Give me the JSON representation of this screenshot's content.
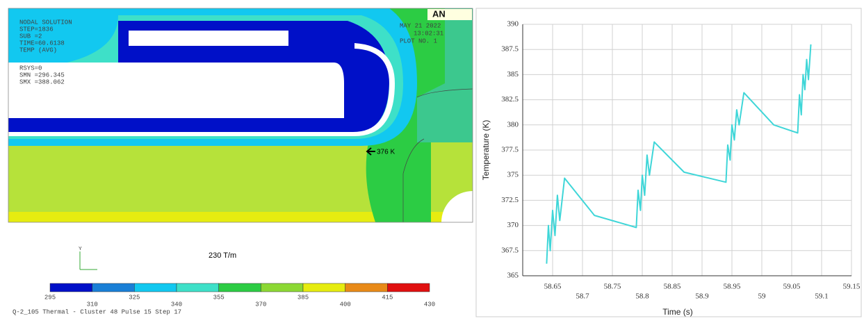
{
  "contour_plot": {
    "info_left": [
      "NODAL SOLUTION",
      "STEP=1836",
      "SUB =2",
      "TIME=60.6138",
      "TEMP (AVG)",
      "RSYS=0",
      "SMN =296.345",
      "SMX =388.062"
    ],
    "logo": "AN",
    "info_right": [
      "MAY 21 2022",
      "13:02:31",
      "PLOT NO. 1"
    ],
    "arrow_label": "376 K",
    "gradient_label": "230 T/m",
    "legend": {
      "levels": [
        295,
        310,
        325,
        340,
        355,
        370,
        385,
        400,
        415,
        430
      ],
      "colors": [
        "#0010c8",
        "#1a7fd6",
        "#12c8f0",
        "#3ee0c8",
        "#2ccc44",
        "#8cd834",
        "#e6ec10",
        "#e88a18",
        "#e01010"
      ]
    },
    "footer": "Q-2_105 Thermal - Cluster 48  Pulse 15  Step 17"
  },
  "chart_data": {
    "type": "line",
    "x": [
      58.64,
      58.643,
      58.646,
      58.65,
      58.654,
      58.658,
      58.662,
      58.67,
      58.72,
      58.79,
      58.793,
      58.797,
      58.8,
      58.804,
      58.808,
      58.812,
      58.82,
      58.87,
      58.94,
      58.943,
      58.947,
      58.95,
      58.954,
      58.958,
      58.962,
      58.97,
      59.02,
      59.06,
      59.063,
      59.066,
      59.069,
      59.072,
      59.075,
      59.078,
      59.082
    ],
    "values": [
      366.2,
      370,
      367.5,
      371.5,
      369,
      373,
      370.5,
      374.7,
      371,
      369.8,
      373.5,
      371.5,
      375,
      373,
      377,
      375,
      378.3,
      375.3,
      374.3,
      378,
      376.5,
      380,
      378.5,
      381.5,
      380,
      383.2,
      380,
      379.2,
      383,
      381,
      385,
      383.5,
      386.5,
      384.5,
      388
    ],
    "color": "#3fd6d8",
    "xlabel": "Time (s)",
    "ylabel": "Temperature (K)",
    "xlim": [
      58.6,
      59.15
    ],
    "xticks": [
      58.65,
      58.7,
      58.75,
      58.8,
      58.85,
      58.9,
      58.95,
      59,
      59.05,
      59.1,
      59.15
    ],
    "ylim": [
      365,
      390
    ],
    "yticks": [
      365,
      367.5,
      370,
      372.5,
      375,
      377.5,
      380,
      382.5,
      385,
      387.5,
      390
    ],
    "grid": true
  }
}
